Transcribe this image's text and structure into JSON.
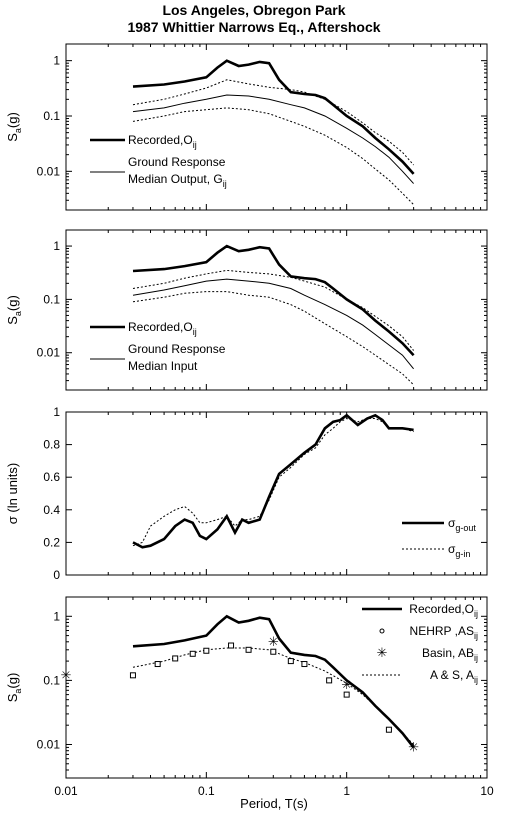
{
  "figure": {
    "title_line1": "Los Angeles, Obregon Park",
    "title_line2": "1987 Whittier Narrows Eq., Aftershock",
    "xlabel": "Period, T(s)",
    "x_ticks": [
      "0.01",
      "0.1",
      "1",
      "10"
    ]
  },
  "chart_data": [
    {
      "type": "line",
      "panel": "ground-response-output",
      "ylabel": "Sa(g)",
      "ylabel_main": "S",
      "ylabel_sub": "a",
      "ylabel_rest": "(g)",
      "yscale": "log",
      "xscale": "log",
      "xlim": [
        0.01,
        10
      ],
      "ylim": [
        0.002,
        2
      ],
      "y_ticks": [
        "1",
        "0.1",
        "0.01"
      ],
      "legend": [
        {
          "main": "Recorded,O",
          "sub": "ij",
          "style": "thick"
        },
        {
          "main": "Ground Response",
          "line2": "Median Output, G",
          "sub": "ij",
          "style": "thin"
        }
      ],
      "series": [
        {
          "style": "thick",
          "x": [
            0.03,
            0.05,
            0.07,
            0.1,
            0.12,
            0.14,
            0.17,
            0.2,
            0.24,
            0.28,
            0.33,
            0.4,
            0.5,
            0.6,
            0.7,
            0.8,
            1.0,
            1.3,
            1.6,
            2.0,
            2.5,
            3.0
          ],
          "y": [
            0.34,
            0.37,
            0.42,
            0.5,
            0.75,
            1.0,
            0.8,
            0.85,
            0.95,
            0.9,
            0.45,
            0.27,
            0.25,
            0.24,
            0.21,
            0.16,
            0.1,
            0.065,
            0.04,
            0.025,
            0.015,
            0.009
          ]
        },
        {
          "style": "thin",
          "x": [
            0.03,
            0.05,
            0.07,
            0.1,
            0.14,
            0.2,
            0.28,
            0.4,
            0.5,
            0.7,
            1.0,
            1.3,
            1.6,
            2.0,
            2.5,
            3.0
          ],
          "y": [
            0.12,
            0.14,
            0.17,
            0.2,
            0.24,
            0.23,
            0.2,
            0.16,
            0.14,
            0.1,
            0.06,
            0.04,
            0.028,
            0.018,
            0.01,
            0.006
          ]
        },
        {
          "style": "dotted",
          "x": [
            0.03,
            0.05,
            0.07,
            0.1,
            0.14,
            0.2,
            0.28,
            0.4,
            0.5,
            0.7,
            1.0,
            1.3,
            1.6,
            2.0,
            2.5,
            3.0
          ],
          "y": [
            0.16,
            0.2,
            0.25,
            0.32,
            0.45,
            0.38,
            0.33,
            0.3,
            0.27,
            0.2,
            0.12,
            0.075,
            0.05,
            0.035,
            0.022,
            0.013
          ]
        },
        {
          "style": "dotted",
          "x": [
            0.03,
            0.05,
            0.07,
            0.1,
            0.14,
            0.2,
            0.28,
            0.4,
            0.5,
            0.7,
            1.0,
            1.3,
            1.6,
            2.0,
            2.5,
            3.0
          ],
          "y": [
            0.08,
            0.1,
            0.12,
            0.13,
            0.14,
            0.13,
            0.11,
            0.08,
            0.065,
            0.045,
            0.027,
            0.017,
            0.011,
            0.007,
            0.004,
            0.0025
          ]
        }
      ]
    },
    {
      "type": "line",
      "panel": "ground-response-input",
      "ylabel": "Sa(g)",
      "ylabel_main": "S",
      "ylabel_sub": "a",
      "ylabel_rest": "(g)",
      "yscale": "log",
      "xscale": "log",
      "xlim": [
        0.01,
        10
      ],
      "ylim": [
        0.002,
        2
      ],
      "y_ticks": [
        "1",
        "0.1",
        "0.01"
      ],
      "legend": [
        {
          "main": "Recorded,O",
          "sub": "ij",
          "style": "thick"
        },
        {
          "main": "Ground Response",
          "line2": "Median Input",
          "sub": "",
          "style": "thin"
        }
      ],
      "series": [
        {
          "style": "thick",
          "x": [
            0.03,
            0.05,
            0.07,
            0.1,
            0.12,
            0.14,
            0.17,
            0.2,
            0.24,
            0.28,
            0.33,
            0.4,
            0.5,
            0.6,
            0.7,
            0.8,
            1.0,
            1.3,
            1.6,
            2.0,
            2.5,
            3.0
          ],
          "y": [
            0.34,
            0.37,
            0.42,
            0.5,
            0.75,
            1.0,
            0.8,
            0.85,
            0.95,
            0.9,
            0.45,
            0.27,
            0.25,
            0.24,
            0.21,
            0.16,
            0.1,
            0.065,
            0.04,
            0.025,
            0.015,
            0.009
          ]
        },
        {
          "style": "thin",
          "x": [
            0.03,
            0.05,
            0.07,
            0.1,
            0.14,
            0.2,
            0.28,
            0.4,
            0.5,
            0.7,
            1.0,
            1.3,
            1.6,
            2.0,
            2.5,
            3.0
          ],
          "y": [
            0.12,
            0.15,
            0.18,
            0.22,
            0.24,
            0.22,
            0.2,
            0.16,
            0.12,
            0.08,
            0.05,
            0.033,
            0.022,
            0.014,
            0.009,
            0.005
          ]
        },
        {
          "style": "dotted",
          "x": [
            0.03,
            0.05,
            0.07,
            0.1,
            0.14,
            0.2,
            0.28,
            0.4,
            0.5,
            0.7,
            1.0,
            1.3,
            1.6,
            2.0,
            2.5,
            3.0
          ],
          "y": [
            0.16,
            0.2,
            0.25,
            0.3,
            0.35,
            0.32,
            0.3,
            0.26,
            0.22,
            0.17,
            0.1,
            0.07,
            0.048,
            0.032,
            0.02,
            0.011
          ]
        },
        {
          "style": "dotted",
          "x": [
            0.03,
            0.05,
            0.07,
            0.1,
            0.14,
            0.2,
            0.28,
            0.4,
            0.5,
            0.7,
            1.0,
            1.3,
            1.6,
            2.0,
            2.5,
            3.0
          ],
          "y": [
            0.09,
            0.11,
            0.13,
            0.14,
            0.14,
            0.12,
            0.11,
            0.08,
            0.06,
            0.035,
            0.02,
            0.013,
            0.009,
            0.006,
            0.004,
            0.0025
          ]
        }
      ]
    },
    {
      "type": "line",
      "panel": "standard-deviation",
      "ylabel": "σ (ln units)",
      "yscale": "linear",
      "xscale": "log",
      "xlim": [
        0.01,
        10
      ],
      "ylim": [
        0,
        1
      ],
      "y_ticks": [
        "1",
        "0.8",
        "0.6",
        "0.4",
        "0.2",
        "0"
      ],
      "y_tick_values": [
        1,
        0.8,
        0.6,
        0.4,
        0.2,
        0
      ],
      "legend": [
        {
          "main": "σ",
          "sub": "g-out",
          "style": "thick"
        },
        {
          "main": "σ",
          "sub": "g-in",
          "style": "dotted"
        }
      ],
      "series": [
        {
          "style": "thick",
          "x": [
            0.03,
            0.035,
            0.04,
            0.05,
            0.06,
            0.07,
            0.08,
            0.09,
            0.1,
            0.12,
            0.14,
            0.16,
            0.18,
            0.2,
            0.24,
            0.28,
            0.33,
            0.4,
            0.5,
            0.6,
            0.7,
            0.8,
            0.9,
            1.0,
            1.2,
            1.4,
            1.6,
            1.8,
            2.0,
            2.5,
            3.0
          ],
          "y": [
            0.2,
            0.17,
            0.18,
            0.22,
            0.3,
            0.34,
            0.32,
            0.24,
            0.22,
            0.28,
            0.36,
            0.26,
            0.34,
            0.32,
            0.34,
            0.48,
            0.62,
            0.68,
            0.75,
            0.8,
            0.9,
            0.94,
            0.95,
            0.98,
            0.92,
            0.96,
            0.98,
            0.95,
            0.9,
            0.9,
            0.89
          ]
        },
        {
          "style": "dotted",
          "x": [
            0.03,
            0.035,
            0.04,
            0.05,
            0.06,
            0.07,
            0.08,
            0.09,
            0.1,
            0.12,
            0.14,
            0.16,
            0.18,
            0.2,
            0.24,
            0.28,
            0.33,
            0.4,
            0.5,
            0.6,
            0.7,
            0.8,
            0.9,
            1.0,
            1.2,
            1.4,
            1.6,
            1.8,
            2.0,
            2.5,
            3.0
          ],
          "y": [
            0.18,
            0.2,
            0.3,
            0.36,
            0.4,
            0.42,
            0.38,
            0.32,
            0.32,
            0.34,
            0.36,
            0.3,
            0.34,
            0.34,
            0.36,
            0.46,
            0.6,
            0.66,
            0.74,
            0.78,
            0.86,
            0.9,
            0.94,
            0.96,
            0.94,
            0.96,
            0.96,
            0.94,
            0.9,
            0.9,
            0.88
          ]
        }
      ]
    },
    {
      "type": "line",
      "panel": "model-comparison",
      "ylabel": "Sa(g)",
      "ylabel_main": "S",
      "ylabel_sub": "a",
      "ylabel_rest": "(g)",
      "yscale": "log",
      "xscale": "log",
      "xlim": [
        0.01,
        10
      ],
      "ylim": [
        0.003,
        2
      ],
      "y_ticks": [
        "1",
        "0.1",
        "0.01"
      ],
      "legend": [
        {
          "main": "Recorded,O",
          "sub": "ij",
          "style": "thick"
        },
        {
          "main": "NEHRP ,AS",
          "sub": "ij",
          "style": "circle"
        },
        {
          "main": "Basin, AB",
          "sub": "ij",
          "style": "star"
        },
        {
          "main": "A & S, A",
          "sub": "ij",
          "style": "dotted"
        }
      ],
      "series": [
        {
          "style": "thick",
          "x": [
            0.03,
            0.05,
            0.07,
            0.1,
            0.12,
            0.14,
            0.17,
            0.2,
            0.24,
            0.28,
            0.33,
            0.4,
            0.5,
            0.6,
            0.7,
            0.8,
            1.0,
            1.3,
            1.6,
            2.0,
            2.5,
            3.0
          ],
          "y": [
            0.34,
            0.37,
            0.42,
            0.5,
            0.75,
            1.0,
            0.8,
            0.85,
            0.95,
            0.9,
            0.45,
            0.27,
            0.25,
            0.24,
            0.21,
            0.16,
            0.1,
            0.065,
            0.04,
            0.025,
            0.015,
            0.009
          ]
        },
        {
          "style": "dotted",
          "x": [
            0.03,
            0.05,
            0.07,
            0.1,
            0.14,
            0.2,
            0.28,
            0.4,
            0.5,
            0.7,
            1.0,
            1.3,
            1.6,
            2.0,
            2.5,
            3.0
          ],
          "y": [
            0.16,
            0.2,
            0.25,
            0.3,
            0.32,
            0.32,
            0.3,
            0.22,
            0.19,
            0.14,
            0.09,
            0.06,
            0.04,
            0.025,
            0.015,
            0.01
          ]
        },
        {
          "style": "square",
          "x": [
            0.03,
            0.045,
            0.06,
            0.08,
            0.1,
            0.15,
            0.2,
            0.3,
            0.4,
            0.5,
            0.75,
            1.0,
            2.0
          ],
          "y": [
            0.12,
            0.18,
            0.22,
            0.26,
            0.29,
            0.35,
            0.3,
            0.28,
            0.2,
            0.18,
            0.1,
            0.06,
            0.017
          ]
        },
        {
          "style": "star",
          "x": [
            0.01,
            0.3,
            1.0,
            3.0
          ],
          "y": [
            0.12,
            0.4,
            0.085,
            0.009
          ]
        }
      ]
    }
  ]
}
